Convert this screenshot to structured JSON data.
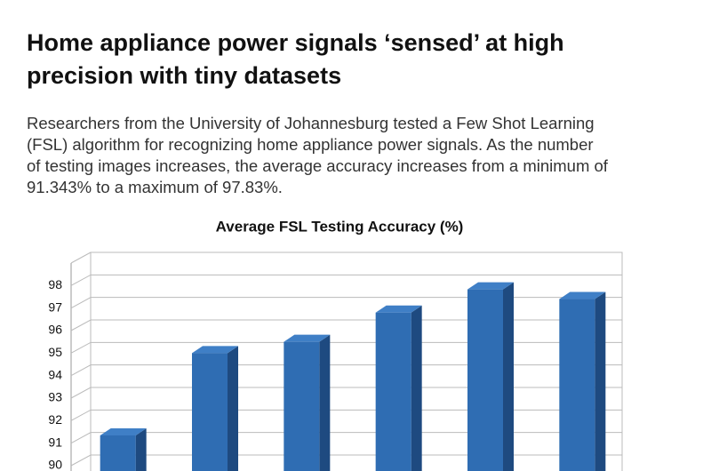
{
  "chart_data": {
    "type": "bar3d",
    "title": [
      "Home appliance power signals ‘sensed’ at high",
      "precision with tiny datasets"
    ],
    "subtitle": [
      "Researchers from the University of Johannesburg tested a Few Shot Learning",
      "(FSL) algorithm for recognizing home appliance power signals. As the number",
      "of testing images increases, the average accuracy increases from a minimum of",
      "91.343% to a maximum of 97.83%."
    ],
    "chart_title": "Average FSL Testing Accuracy (%)",
    "categories": [
      null,
      null,
      null,
      null,
      null,
      null
    ],
    "values": [
      91.343,
      95.0,
      95.5,
      96.8,
      97.83,
      97.4
    ],
    "color": "#2f6db3",
    "ylim": [
      90,
      99
    ],
    "yticks": [
      90,
      91,
      92,
      93,
      94,
      95,
      96,
      97,
      98
    ],
    "grid": true
  }
}
